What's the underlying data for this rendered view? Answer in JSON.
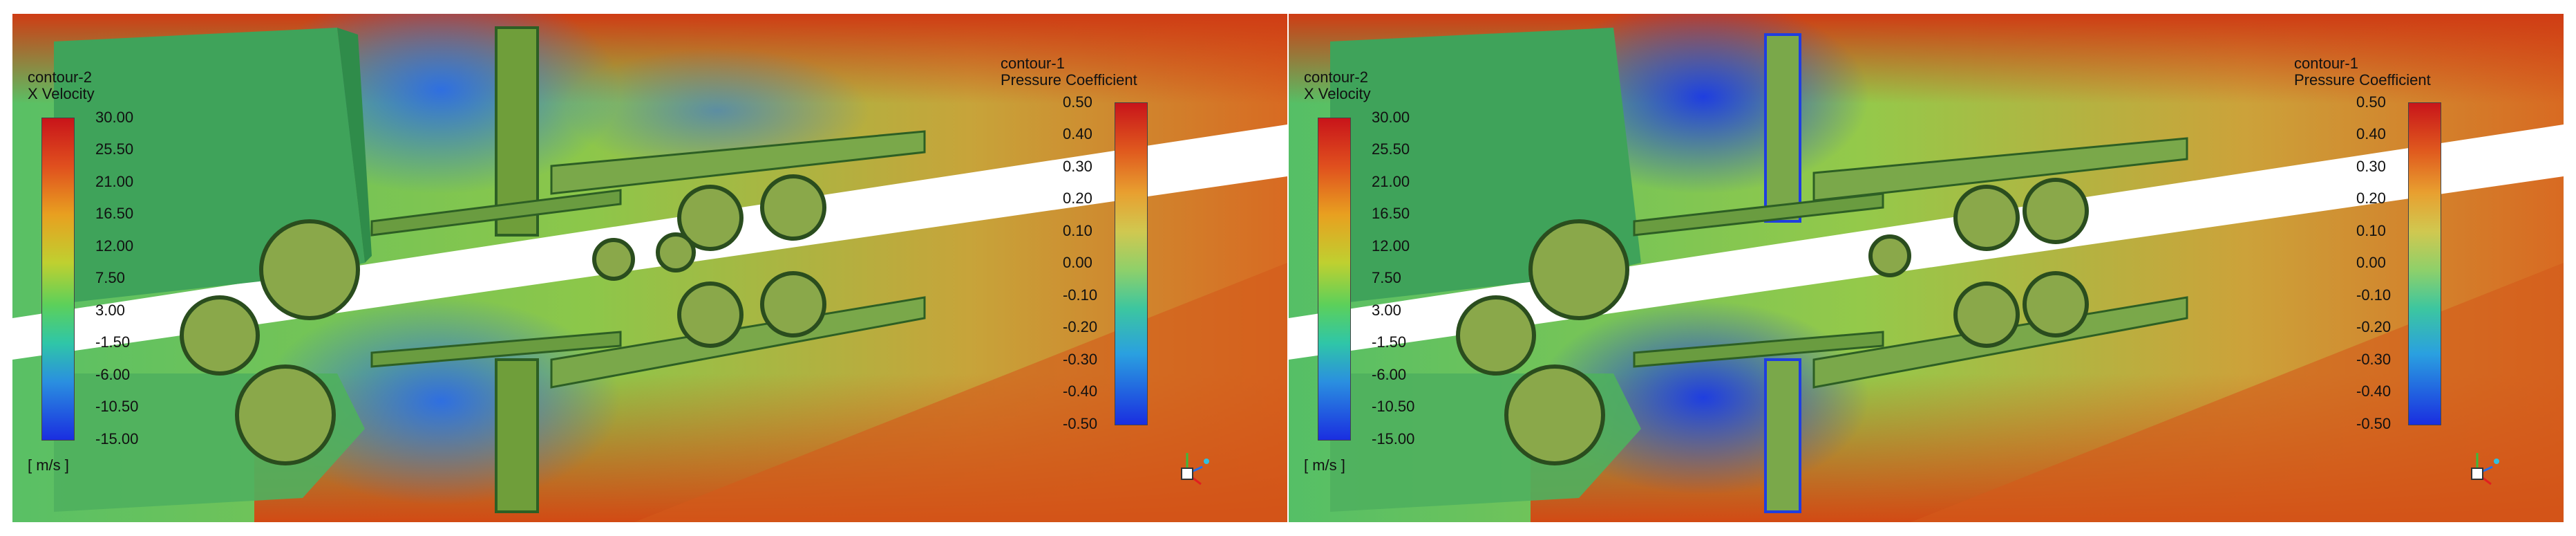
{
  "panels": [
    {
      "id": "left",
      "contour2": {
        "name": "contour-2",
        "variable": "X Velocity",
        "units": "[ m/s ]",
        "ticks": [
          "30.00",
          "25.50",
          "21.00",
          "16.50",
          "12.00",
          "7.50",
          "3.00",
          "-1.50",
          "-6.00",
          "-10.50",
          "-15.00"
        ]
      },
      "contour1": {
        "name": "contour-1",
        "variable": "Pressure Coefficient",
        "ticks": [
          "0.50",
          "0.40",
          "0.30",
          "0.20",
          "0.10",
          "0.00",
          "-0.10",
          "-0.20",
          "-0.30",
          "-0.40",
          "-0.50"
        ]
      }
    },
    {
      "id": "right",
      "contour2": {
        "name": "contour-2",
        "variable": "X Velocity",
        "units": "[ m/s ]",
        "ticks": [
          "30.00",
          "25.50",
          "21.00",
          "16.50",
          "12.00",
          "7.50",
          "3.00",
          "-1.50",
          "-6.00",
          "-10.50",
          "-15.00"
        ]
      },
      "contour1": {
        "name": "contour-1",
        "variable": "Pressure Coefficient",
        "ticks": [
          "0.50",
          "0.40",
          "0.30",
          "0.20",
          "0.10",
          "0.00",
          "-0.10",
          "-0.20",
          "-0.30",
          "-0.40",
          "-0.50"
        ]
      }
    }
  ],
  "colors": {
    "jet_top": "#c81e10",
    "jet_bottom": "#1a2ee0",
    "field_hot": "#d9541a",
    "field_mid": "#8bc34a",
    "field_cool": "#2e7dd8",
    "road": "#ffffff"
  }
}
